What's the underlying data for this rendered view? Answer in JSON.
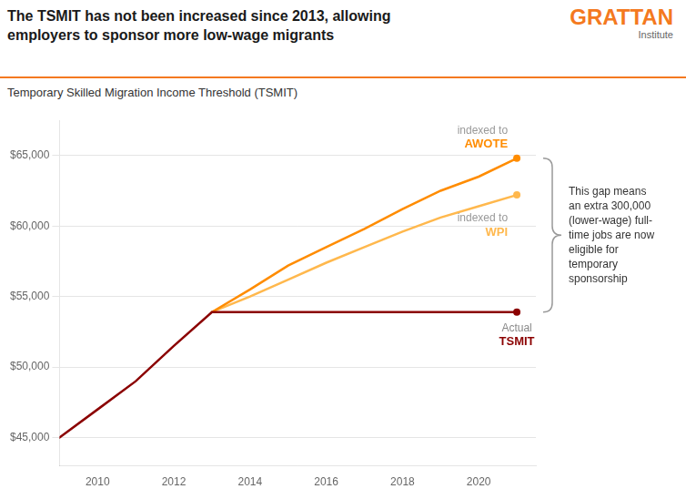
{
  "chart_data": {
    "type": "line",
    "title": [
      "The TSMIT has not been increased since 2013, allowing",
      "employers to sponsor more low-wage migrants"
    ],
    "subtitle": "Temporary Skilled Migration Income Threshold (TSMIT)",
    "brand": [
      "GRATTAN",
      "Institute"
    ],
    "annotations": [
      "This gap means\nan extra 300,000\n(lower-wage) full-\ntime jobs are now\neligible for\ntemporary\nsponsorship"
    ],
    "series": [
      {
        "name": "Actual TSMIT",
        "color": "#8B0000",
        "x": [
          2009,
          2010,
          2011,
          2012,
          2013,
          2014,
          2015,
          2016,
          2017,
          2018,
          2019,
          2020,
          2021
        ],
        "values": [
          45000,
          47000,
          49000,
          51500,
          53900,
          53900,
          53900,
          53900,
          53900,
          53900,
          53900,
          53900,
          53900
        ]
      },
      {
        "name": "indexed to AWOTE",
        "color": "#FF8C00",
        "x": [
          2013,
          2014,
          2015,
          2016,
          2017,
          2018,
          2019,
          2020,
          2021
        ],
        "values": [
          53900,
          55500,
          57200,
          58500,
          59800,
          61200,
          62500,
          63500,
          64800
        ]
      },
      {
        "name": "indexed to WPI",
        "color": "#FFB84D",
        "x": [
          2013,
          2014,
          2015,
          2016,
          2017,
          2018,
          2019,
          2020,
          2021
        ],
        "values": [
          53900,
          55000,
          56200,
          57400,
          58500,
          59600,
          60600,
          61400,
          62200
        ]
      }
    ],
    "xlim": [
      2009,
      2021.5
    ],
    "xticks": [
      2010,
      2012,
      2014,
      2016,
      2018,
      2020
    ],
    "ylim": [
      43000,
      67500
    ],
    "yticks": [
      {
        "value": 45000,
        "label": "$45,000"
      },
      {
        "value": 50000,
        "label": "$50,000"
      },
      {
        "value": 55000,
        "label": "$55,000"
      },
      {
        "value": 60000,
        "label": "$60,000"
      },
      {
        "value": 65000,
        "label": "$65,000"
      }
    ],
    "grid": "y"
  }
}
